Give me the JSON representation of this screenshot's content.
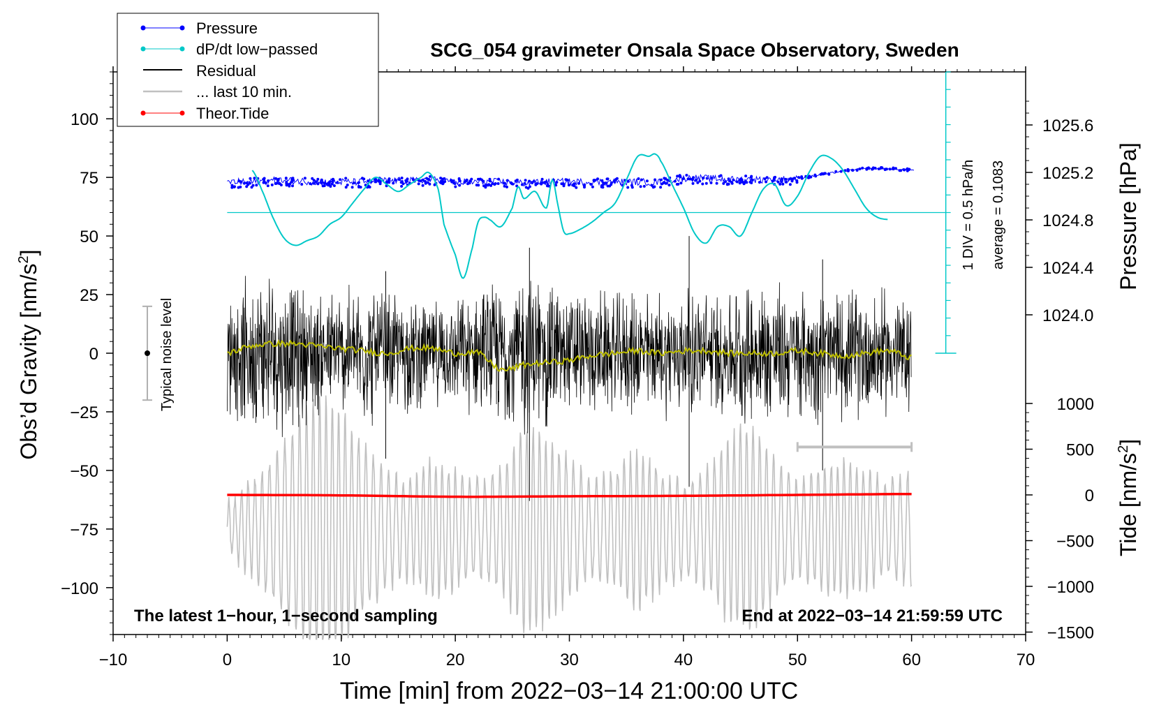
{
  "chart_data": {
    "type": "line",
    "title": "SCG_054 gravimeter Onsala Space Observatory, Sweden",
    "xlabel": "Time [min] from 2022−03−14 21:00:00 UTC",
    "ylabel_left_prefix": "Obs’d Gravity [nm/s",
    "ylabel_left_sup": "2",
    "ylabel_left_suffix": "]",
    "ylabel_pressure": "Pressure [hPa]",
    "ylabel_tide_prefix": "Tide [nm/s",
    "ylabel_tide_sup": "2",
    "ylabel_tide_suffix": "]",
    "xlim": [
      -10,
      70
    ],
    "ylim": [
      -120,
      120
    ],
    "x_ticks": [
      "−10",
      "0",
      "10",
      "20",
      "30",
      "40",
      "50",
      "60",
      "70"
    ],
    "y_ticks": [
      "100",
      "75",
      "50",
      "25",
      "0",
      "−25",
      "−50",
      "−75",
      "−100"
    ],
    "pressure_ticks": [
      "1025.6",
      "1025.2",
      "1024.8",
      "1024.4",
      "1024.0"
    ],
    "tide_ticks": [
      "1000",
      "500",
      "0",
      "−500",
      "−1000",
      "−1500"
    ],
    "legend_placement": "top-left",
    "legend": [
      {
        "label": "Pressure",
        "color": "#0000ff",
        "marker": true
      },
      {
        "label": "dP/dt low−passed",
        "color": "#00c8c8",
        "marker": true
      },
      {
        "label": "Residual",
        "color": "#000000",
        "marker": false
      },
      {
        "label": "... last 10 min.",
        "color": "#c0c0c0",
        "marker": false
      },
      {
        "label": "Theor.Tide",
        "color": "#ff0000",
        "marker": true
      }
    ],
    "annotations": {
      "bottom_left": "The latest 1−hour, 1−second sampling",
      "bottom_right": "End at 2022−03−14 21:59:59 UTC",
      "noise": "Typical noise level",
      "div": "1 DIV = 0.5 hPa/h",
      "average": "average = 0.1083"
    },
    "noise_bar": {
      "x": -7,
      "y_range": [
        -20,
        20
      ]
    },
    "last10_bar": {
      "x_range": [
        50,
        60
      ],
      "y": -40
    },
    "dpdt_baseline_gravity": 60,
    "series": [
      {
        "name": "Pressure",
        "color": "#0000ff",
        "x": [
          0,
          2,
          4,
          6,
          8,
          10,
          12,
          14,
          16,
          18,
          20,
          22,
          24,
          26,
          28,
          30,
          32,
          34,
          36,
          38,
          40,
          42,
          44,
          46,
          48,
          50,
          52,
          54,
          56,
          58,
          60
        ],
        "values": [
          1025.12,
          1025.12,
          1025.13,
          1025.13,
          1025.12,
          1025.12,
          1025.12,
          1025.13,
          1025.13,
          1025.14,
          1025.12,
          1025.12,
          1025.12,
          1025.11,
          1025.12,
          1025.12,
          1025.12,
          1025.12,
          1025.12,
          1025.12,
          1025.15,
          1025.15,
          1025.14,
          1025.14,
          1025.14,
          1025.15,
          1025.18,
          1025.21,
          1025.23,
          1025.23,
          1025.22
        ]
      },
      {
        "name": "dP/dt low-passed",
        "color": "#00c8c8",
        "x": [
          2.2,
          3,
          4,
          5,
          6,
          7,
          8,
          9,
          10,
          11,
          12,
          13,
          14,
          15,
          16,
          17,
          17.7,
          18.5,
          19,
          20,
          20.7,
          21.5,
          22,
          22.5,
          23,
          24,
          25,
          25.5,
          26,
          27,
          28,
          28.5,
          29,
          29.5,
          30,
          31,
          32,
          33,
          34,
          35,
          36,
          37,
          37.5,
          38,
          39,
          40,
          41,
          42,
          43,
          44,
          45,
          46,
          47,
          48,
          49,
          50,
          51,
          52,
          53,
          54,
          55,
          56,
          57,
          58
        ],
        "values": [
          78,
          70,
          58,
          49,
          46,
          48,
          50,
          55,
          58,
          64,
          70,
          75,
          72,
          69,
          72,
          75,
          77,
          70,
          55,
          42,
          32,
          45,
          56,
          58,
          57,
          54,
          62,
          71,
          66,
          69,
          62,
          74,
          63,
          52,
          51,
          53,
          56,
          60,
          64,
          74,
          84,
          84,
          85,
          82,
          72,
          62,
          51,
          47,
          54,
          54,
          50,
          60,
          70,
          72,
          63,
          67,
          77,
          84,
          83,
          78,
          70,
          62,
          58,
          57
        ]
      },
      {
        "name": "Residual",
        "color": "#000000",
        "x": [
          0,
          60
        ],
        "envelope": [
          20,
          60
        ],
        "values": [
          0,
          0
        ]
      },
      {
        "name": "Residual smoothed",
        "color": "#bcbc00",
        "x": [
          0,
          2,
          4,
          6,
          8,
          10,
          12,
          14,
          16,
          18,
          20,
          22,
          24,
          26,
          28,
          30,
          32,
          34,
          36,
          38,
          40,
          42,
          44,
          46,
          48,
          50,
          52,
          54,
          56,
          58,
          60
        ],
        "values": [
          0,
          3,
          4,
          4,
          3,
          2,
          1,
          0,
          2,
          2,
          0,
          0,
          -7,
          -5,
          -4,
          -3,
          -1,
          0,
          1,
          0,
          1,
          1,
          0,
          0,
          0,
          1,
          0,
          -1,
          0,
          1,
          -2
        ]
      },
      {
        "name": "... last 10 min.",
        "color": "#c0c0c0",
        "x": [
          0,
          60
        ],
        "envelope": [
          -20,
          60
        ],
        "values": [
          -75,
          -75
        ]
      },
      {
        "name": "Theor.Tide",
        "color": "#ff0000",
        "x": [
          0,
          10,
          20,
          30,
          40,
          50,
          60
        ],
        "values": [
          0,
          -5,
          -20,
          -15,
          -10,
          0,
          10
        ]
      }
    ]
  }
}
